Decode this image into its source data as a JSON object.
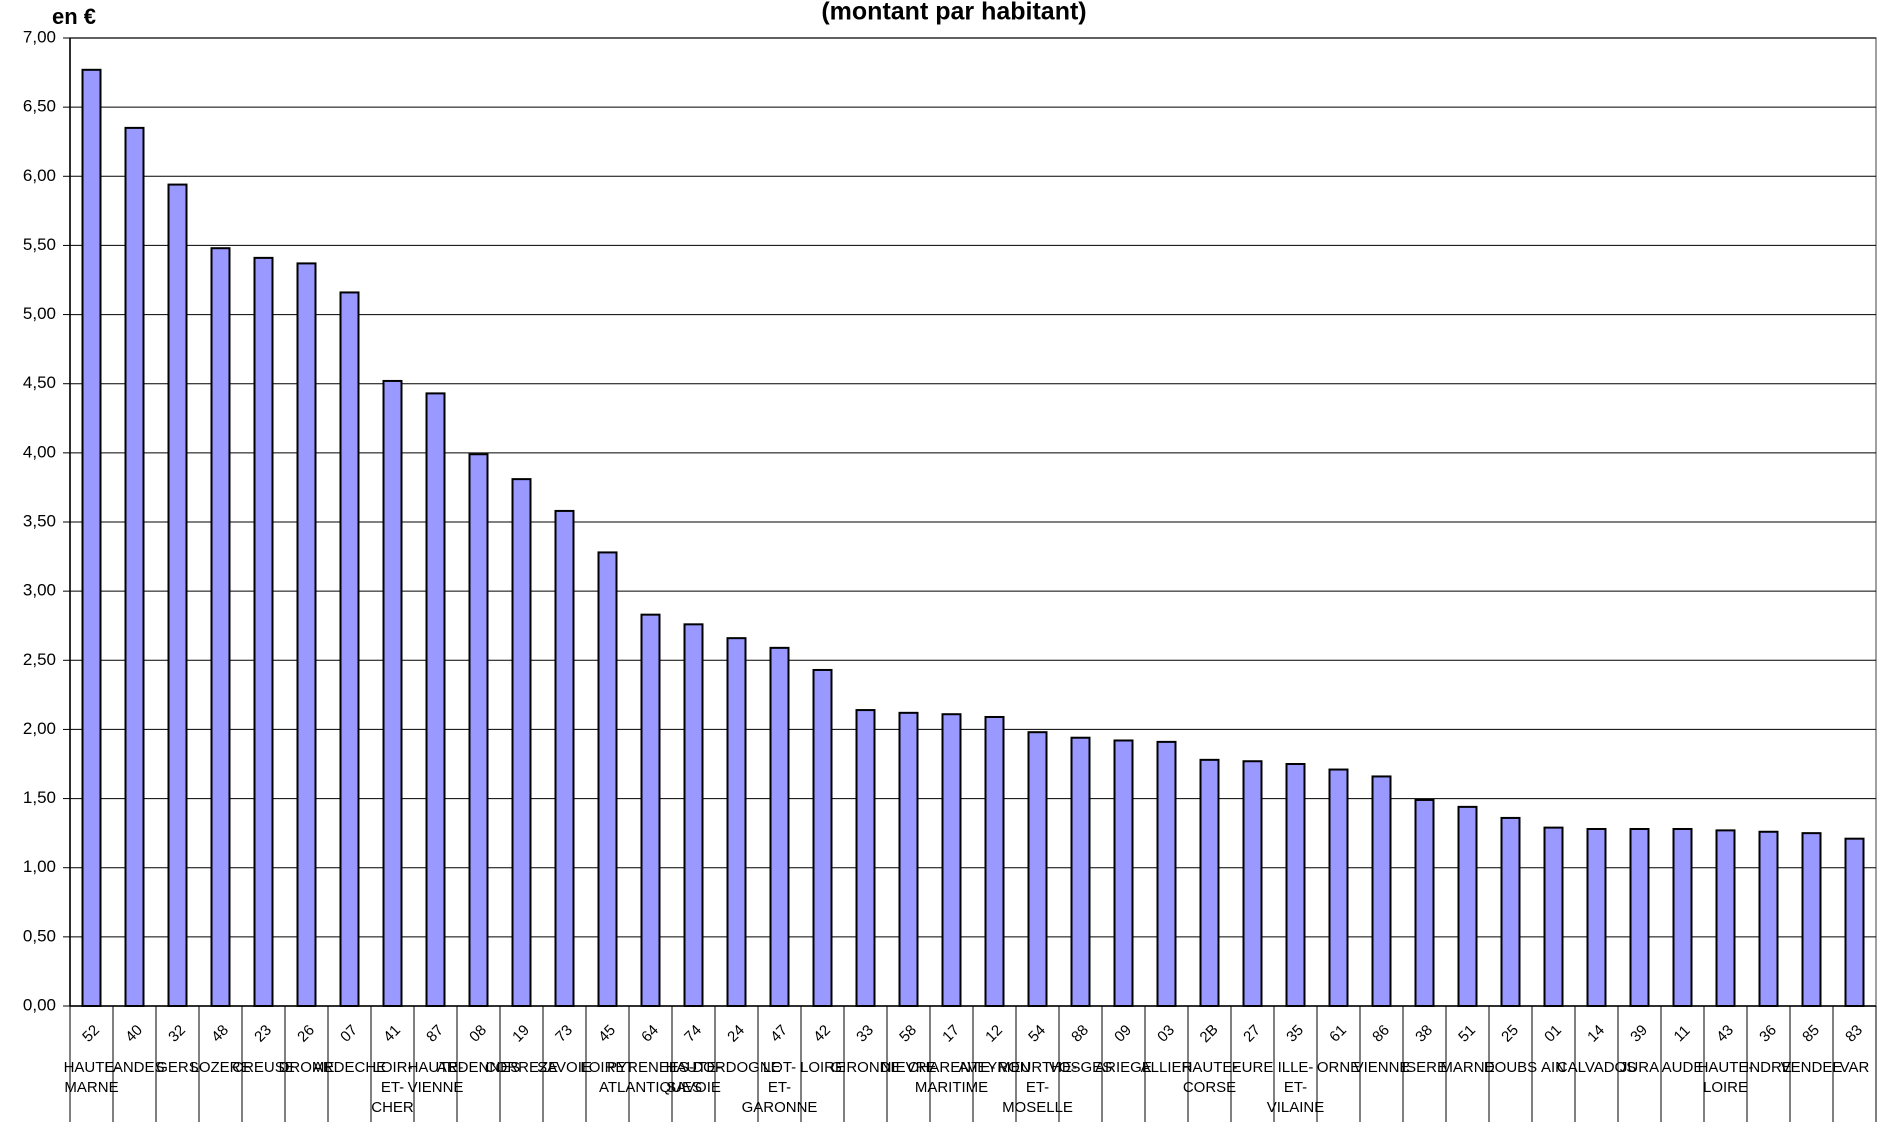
{
  "chart_data": {
    "type": "bar",
    "title": "(montant par habitant)",
    "y_label": "en €",
    "codes": [
      "52",
      "40",
      "32",
      "48",
      "23",
      "26",
      "07",
      "41",
      "87",
      "08",
      "19",
      "73",
      "45",
      "64",
      "74",
      "24",
      "47",
      "42",
      "33",
      "58",
      "17",
      "12",
      "54",
      "88",
      "09",
      "03",
      "2B",
      "27",
      "35",
      "61",
      "86",
      "38",
      "51",
      "25",
      "01",
      "14",
      "39",
      "11",
      "43",
      "36",
      "85",
      "83"
    ],
    "categories": [
      "HAUTE-MARNE",
      "LANDES",
      "GERS",
      "LOZERE",
      "CREUSE",
      "DROME",
      "ARDECHE",
      "LOIR-ET-CHER",
      "HAUTE-VIENNE",
      "ARDENNES",
      "CORREZE",
      "SAVOIE",
      "LOIRET",
      "PYRENEES-ATLANTIQUES",
      "HAUTE-SAVOIE",
      "DORDOGNE",
      "LOT-ET-GARONNE",
      "LOIRE",
      "GIRONDE",
      "NIEVRE",
      "CHARENTE-MARITIME",
      "AVEYRON",
      "MEURTHE-ET-MOSELLE",
      "VOSGES",
      "ARIEGE",
      "ALLIER",
      "HAUTE-CORSE",
      "EURE",
      "ILLE-ET-VILAINE",
      "ORNE",
      "VIENNE",
      "ISERE",
      "MARNE",
      "DOUBS",
      "AIN",
      "CALVADOS",
      "JURA",
      "AUDE",
      "HAUTE-LOIRE",
      "INDRE",
      "VENDEE",
      "VAR"
    ],
    "values": [
      6.77,
      6.35,
      5.94,
      5.48,
      5.41,
      5.37,
      5.16,
      4.52,
      4.43,
      3.99,
      3.81,
      3.58,
      3.28,
      2.83,
      2.76,
      2.66,
      2.59,
      2.43,
      2.14,
      2.12,
      2.11,
      2.09,
      1.98,
      1.94,
      1.92,
      1.91,
      1.78,
      1.77,
      1.75,
      1.71,
      1.66,
      1.49,
      1.44,
      1.36,
      1.29,
      1.28,
      1.28,
      1.28,
      1.27,
      1.26,
      1.25,
      1.21
    ],
    "color": "#9999ff",
    "ylim": [
      0,
      7
    ],
    "yticks": [
      {
        "value": 0,
        "label": "0,00"
      },
      {
        "value": 0.5,
        "label": "0,50"
      },
      {
        "value": 1,
        "label": "1,00"
      },
      {
        "value": 1.5,
        "label": "1,50"
      },
      {
        "value": 2,
        "label": "2,00"
      },
      {
        "value": 2.5,
        "label": "2,50"
      },
      {
        "value": 3,
        "label": "3,00"
      },
      {
        "value": 3.5,
        "label": "3,50"
      },
      {
        "value": 4,
        "label": "4,00"
      },
      {
        "value": 4.5,
        "label": "4,50"
      },
      {
        "value": 5,
        "label": "5,00"
      },
      {
        "value": 5.5,
        "label": "5,50"
      },
      {
        "value": 6,
        "label": "6,00"
      },
      {
        "value": 6.5,
        "label": "6,50"
      },
      {
        "value": 7,
        "label": "7,00"
      }
    ],
    "grid": true
  }
}
